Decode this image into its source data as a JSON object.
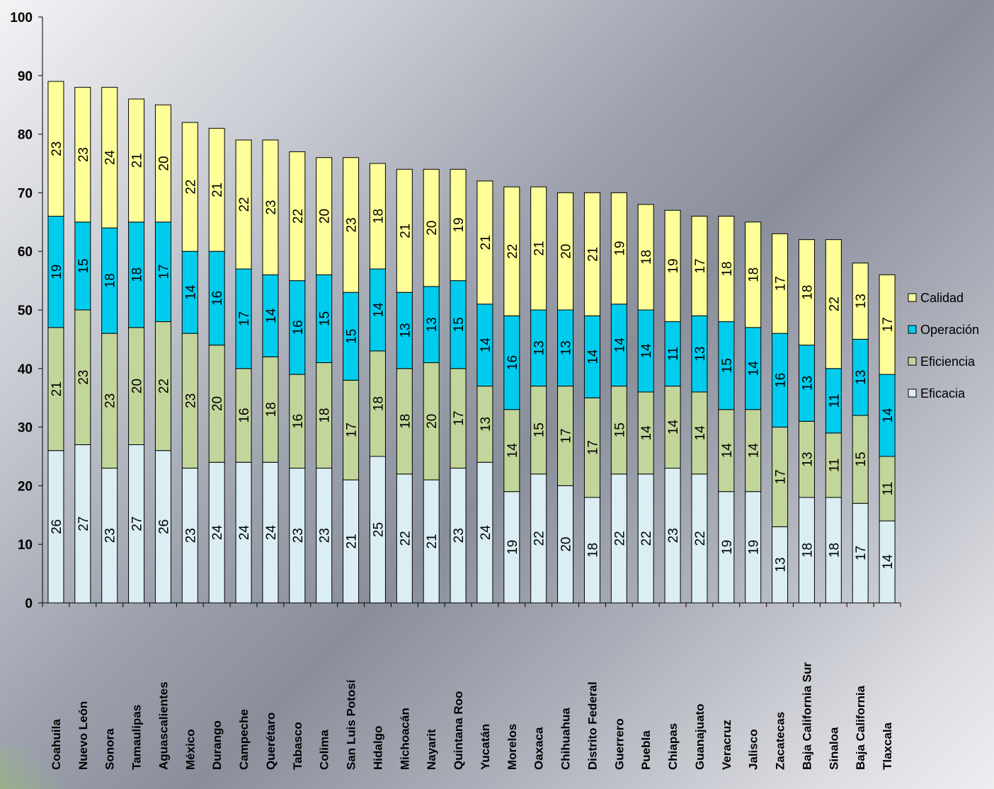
{
  "chart_data": {
    "type": "bar",
    "stacked": true,
    "categories": [
      "Coahuila",
      "Nuevo León",
      "Sonora",
      "Tamaulipas",
      "Aguascalientes",
      "México",
      "Durango",
      "Campeche",
      "Querétaro",
      "Tabasco",
      "Colima",
      "San Luis Potosí",
      "Hidalgo",
      "Michoacán",
      "Nayarit",
      "Quintana Roo",
      "Yucatán",
      "Morelos",
      "Oaxaca",
      "Chihuahua",
      "Distrito Federal",
      "Guerrero",
      "Puebla",
      "Chiapas",
      "Guanajuato",
      "Veracruz",
      "Jalisco",
      "Zacatecas",
      "Baja California Sur",
      "Sinaloa",
      "Baja California",
      "Tlaxcala"
    ],
    "series": [
      {
        "name": "Eficacia",
        "color": "#daeef3",
        "values": [
          26,
          27,
          23,
          27,
          26,
          23,
          24,
          24,
          24,
          23,
          23,
          21,
          25,
          22,
          21,
          23,
          24,
          19,
          22,
          20,
          18,
          22,
          22,
          23,
          22,
          19,
          19,
          13,
          18,
          18,
          17,
          14
        ]
      },
      {
        "name": "Eficiencia",
        "color": "#c2d69b",
        "values": [
          21,
          23,
          23,
          20,
          22,
          23,
          20,
          16,
          18,
          16,
          18,
          17,
          18,
          18,
          20,
          17,
          13,
          14,
          15,
          17,
          17,
          15,
          14,
          14,
          14,
          14,
          14,
          17,
          13,
          11,
          15,
          11
        ]
      },
      {
        "name": "Operación",
        "color": "#00ccee",
        "values": [
          19,
          15,
          18,
          18,
          17,
          14,
          16,
          17,
          14,
          16,
          15,
          15,
          14,
          13,
          13,
          15,
          14,
          16,
          13,
          13,
          14,
          14,
          14,
          11,
          13,
          15,
          14,
          16,
          13,
          11,
          13,
          14
        ]
      },
      {
        "name": "Calidad",
        "color": "#ffff99",
        "values": [
          23,
          23,
          24,
          21,
          20,
          22,
          21,
          22,
          23,
          22,
          20,
          23,
          18,
          21,
          20,
          19,
          21,
          22,
          21,
          20,
          21,
          19,
          18,
          19,
          17,
          18,
          18,
          17,
          18,
          22,
          13,
          17
        ]
      }
    ],
    "ylim": [
      0,
      100
    ],
    "yticks": [
      "0",
      "10",
      "20",
      "30",
      "40",
      "50",
      "60",
      "70",
      "80",
      "90",
      "100"
    ],
    "legend_position": "right",
    "legend_order": [
      "Calidad",
      "Operación",
      "Eficiencia",
      "Eficacia"
    ],
    "title": "",
    "xlabel": "",
    "ylabel": ""
  }
}
